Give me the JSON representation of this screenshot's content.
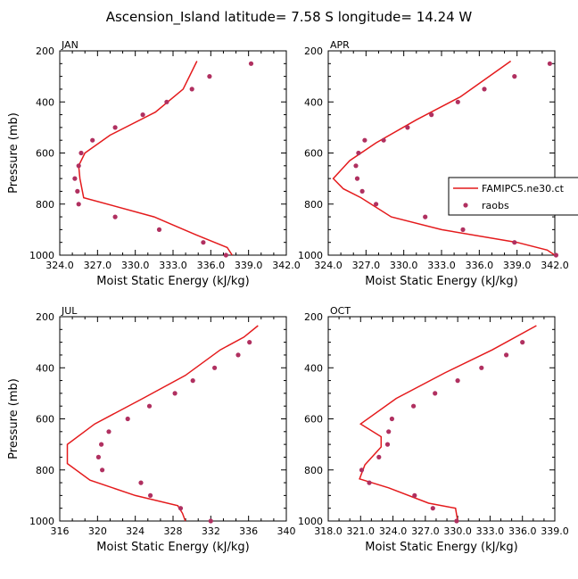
{
  "title": "Ascension_Island   latitude= 7.58 S longitude= 14.24 W",
  "colors": {
    "model": "#e41a1c",
    "obs": "#b03060",
    "axis": "#000000"
  },
  "legend": {
    "model_label": "FAMIPC5.ne30.ct",
    "obs_label": "raobs",
    "location": "right of APR panel"
  },
  "chart_data": [
    {
      "type": "line",
      "month": "JAN",
      "xlabel": "Moist Static Energy (kJ/kg)",
      "ylabel": "Pressure (mb)",
      "xlim": [
        324.0,
        342.0
      ],
      "ylim": [
        1000,
        200
      ],
      "xticks": [
        "324.0",
        "327.0",
        "330.0",
        "333.0",
        "336.0",
        "339.0",
        "342.0"
      ],
      "yticks": [
        "200",
        "400",
        "600",
        "800",
        "1000"
      ],
      "series": [
        {
          "name": "FAMIPC5.ne30.ct",
          "type": "line",
          "x": [
            337.7,
            337.3,
            334.8,
            331.5,
            325.9,
            325.6,
            325.5,
            326.0,
            328.0,
            331.6,
            333.8,
            334.9
          ],
          "y": [
            1000,
            970,
            920,
            850,
            775,
            700,
            650,
            600,
            530,
            440,
            350,
            240
          ]
        },
        {
          "name": "raobs",
          "type": "scatter",
          "x": [
            337.2,
            335.4,
            331.9,
            328.4,
            325.5,
            325.4,
            325.2,
            325.5,
            325.7,
            326.6,
            328.4,
            330.6,
            332.5,
            334.5,
            335.9,
            339.2
          ],
          "y": [
            1000,
            950,
            900,
            850,
            800,
            750,
            700,
            650,
            600,
            550,
            500,
            450,
            400,
            350,
            300,
            250
          ]
        }
      ]
    },
    {
      "type": "line",
      "month": "APR",
      "xlabel": "Moist Static Energy (kJ/kg)",
      "ylabel": "",
      "xlim": [
        324.0,
        342.0
      ],
      "ylim": [
        1000,
        200
      ],
      "xticks": [
        "324.0",
        "327.0",
        "330.0",
        "333.0",
        "336.0",
        "339.0",
        "342.0"
      ],
      "yticks": [
        "200",
        "400",
        "600",
        "800",
        "1000"
      ],
      "series": [
        {
          "name": "FAMIPC5.ne30.ct",
          "type": "line",
          "x": [
            342.0,
            341.4,
            339.0,
            333.0,
            329.0,
            326.6,
            325.2,
            324.4,
            325.7,
            327.8,
            331.0,
            334.5,
            338.5
          ],
          "y": [
            1000,
            980,
            950,
            900,
            850,
            775,
            740,
            700,
            630,
            560,
            470,
            380,
            240
          ]
        },
        {
          "name": "raobs",
          "type": "scatter",
          "x": [
            342.1,
            338.8,
            334.7,
            331.7,
            327.8,
            326.7,
            326.3,
            326.2,
            326.4,
            326.9,
            328.4,
            330.3,
            332.2,
            334.3,
            336.4,
            338.8,
            341.6
          ],
          "y": [
            1000,
            950,
            900,
            850,
            800,
            750,
            700,
            650,
            600,
            550,
            550,
            500,
            450,
            400,
            350,
            300,
            250
          ]
        }
      ]
    },
    {
      "type": "line",
      "month": "JUL",
      "xlabel": "Moist Static Energy (kJ/kg)",
      "ylabel": "Pressure (mb)",
      "xlim": [
        316,
        340
      ],
      "ylim": [
        1000,
        200
      ],
      "xticks": [
        "316",
        "320",
        "324",
        "328",
        "332",
        "336",
        "340"
      ],
      "yticks": [
        "200",
        "400",
        "600",
        "800",
        "1000"
      ],
      "series": [
        {
          "name": "FAMIPC5.ne30.ct",
          "type": "line",
          "x": [
            329.3,
            329.0,
            328.5,
            324.0,
            319.2,
            316.8,
            316.8,
            319.7,
            324.8,
            329.3,
            333.0,
            335.5,
            337.0
          ],
          "y": [
            1000,
            970,
            940,
            900,
            840,
            775,
            700,
            620,
            520,
            430,
            330,
            280,
            235
          ]
        },
        {
          "name": "raobs",
          "type": "scatter",
          "x": [
            332.0,
            328.8,
            325.6,
            324.6,
            320.5,
            320.1,
            320.4,
            321.2,
            323.2,
            325.5,
            328.2,
            330.1,
            332.4,
            334.9,
            336.1
          ],
          "y": [
            1000,
            950,
            900,
            850,
            800,
            750,
            700,
            650,
            600,
            550,
            500,
            450,
            400,
            350,
            300
          ]
        }
      ]
    },
    {
      "type": "line",
      "month": "OCT",
      "xlabel": "Moist Static Energy (kJ/kg)",
      "ylabel": "",
      "xlim": [
        318.0,
        339.0
      ],
      "ylim": [
        1000,
        200
      ],
      "xticks": [
        "318.0",
        "321.0",
        "324.0",
        "327.0",
        "330.0",
        "333.0",
        "336.0",
        "339.0"
      ],
      "yticks": [
        "200",
        "400",
        "600",
        "800",
        "1000"
      ],
      "series": [
        {
          "name": "FAMIPC5.ne30.ct",
          "type": "line",
          "x": [
            330.0,
            329.8,
            327.3,
            323.6,
            320.9,
            321.4,
            322.9,
            322.9,
            321.0,
            324.3,
            328.8,
            333.2,
            337.3
          ],
          "y": [
            1000,
            950,
            930,
            870,
            835,
            780,
            710,
            670,
            620,
            520,
            420,
            330,
            235
          ]
        },
        {
          "name": "raobs",
          "type": "scatter",
          "x": [
            329.9,
            327.7,
            326.0,
            321.8,
            321.1,
            322.7,
            323.5,
            323.6,
            323.9,
            325.9,
            327.9,
            330.0,
            332.2,
            334.5,
            336.0
          ],
          "y": [
            1000,
            950,
            900,
            850,
            800,
            750,
            700,
            650,
            600,
            550,
            500,
            450,
            400,
            350,
            300
          ]
        }
      ]
    }
  ]
}
